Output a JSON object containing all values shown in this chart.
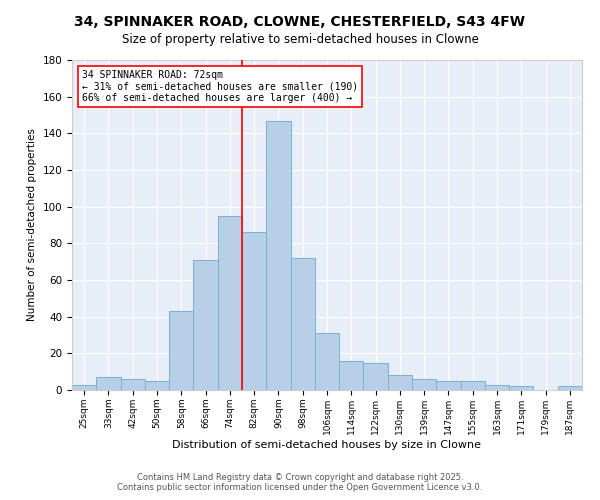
{
  "title": "34, SPINNAKER ROAD, CLOWNE, CHESTERFIELD, S43 4FW",
  "subtitle": "Size of property relative to semi-detached houses in Clowne",
  "xlabel": "Distribution of semi-detached houses by size in Clowne",
  "ylabel": "Number of semi-detached properties",
  "categories": [
    "25sqm",
    "33sqm",
    "42sqm",
    "50sqm",
    "58sqm",
    "66sqm",
    "74sqm",
    "82sqm",
    "90sqm",
    "98sqm",
    "106sqm",
    "114sqm",
    "122sqm",
    "130sqm",
    "139sqm",
    "147sqm",
    "155sqm",
    "163sqm",
    "171sqm",
    "179sqm",
    "187sqm"
  ],
  "values": [
    3,
    7,
    6,
    5,
    43,
    71,
    95,
    86,
    147,
    72,
    31,
    16,
    15,
    8,
    6,
    5,
    5,
    3,
    2,
    0,
    2
  ],
  "bar_color": "#b8cfe8",
  "bar_edge_color": "#7aafd4",
  "highlight_line_color": "red",
  "annotation_title": "34 SPINNAKER ROAD: 72sqm",
  "annotation_line1": "← 31% of semi-detached houses are smaller (190)",
  "annotation_line2": "66% of semi-detached houses are larger (400) →",
  "annotation_box_color": "white",
  "annotation_box_edge_color": "red",
  "ylim": [
    0,
    180
  ],
  "yticks": [
    0,
    20,
    40,
    60,
    80,
    100,
    120,
    140,
    160,
    180
  ],
  "bg_color": "#e8eef8",
  "footer1": "Contains HM Land Registry data © Crown copyright and database right 2025.",
  "footer2": "Contains public sector information licensed under the Open Government Licence v3.0.",
  "title_fontsize": 10,
  "subtitle_fontsize": 8.5
}
